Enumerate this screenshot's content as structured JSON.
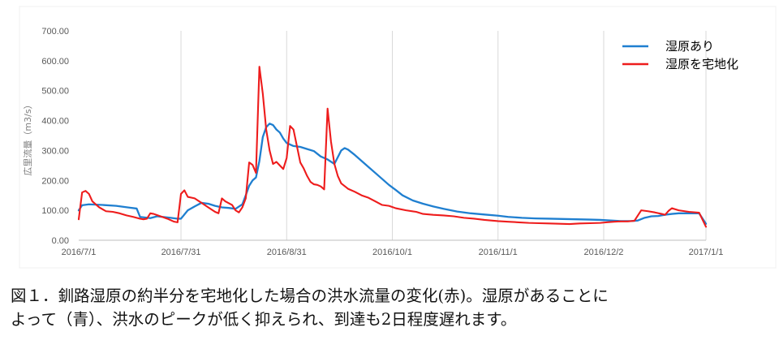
{
  "chart_data": {
    "type": "line",
    "title": "",
    "ylabel": "広里流量（m3/s）",
    "xlabel": "",
    "ylim": [
      0,
      700
    ],
    "y_ticks": [
      "0.00",
      "100.00",
      "200.00",
      "300.00",
      "400.00",
      "500.00",
      "600.00",
      "700.00"
    ],
    "x_range": [
      "2016-07-01",
      "2017-01-01"
    ],
    "x_ticks": [
      {
        "date": "2016-07-01",
        "label": "2016/7/1"
      },
      {
        "date": "2016-07-31",
        "label": "2016/7/31"
      },
      {
        "date": "2016-08-31",
        "label": "2016/8/31"
      },
      {
        "date": "2016-10-01",
        "label": "2016/10/1"
      },
      {
        "date": "2016-11-01",
        "label": "2016/11/1"
      },
      {
        "date": "2016-12-02",
        "label": "2016/12/2"
      },
      {
        "date": "2017-01-01",
        "label": "2017/1/1"
      }
    ],
    "grid": "vertical",
    "legend_position": "top-right",
    "series": [
      {
        "name": "湿原あり",
        "color": "#1f7fd0",
        "points": [
          [
            "2016-07-01",
            100
          ],
          [
            "2016-07-02",
            117
          ],
          [
            "2016-07-04",
            120
          ],
          [
            "2016-07-08",
            118
          ],
          [
            "2016-07-12",
            115
          ],
          [
            "2016-07-16",
            109
          ],
          [
            "2016-07-18",
            106
          ],
          [
            "2016-07-19",
            78
          ],
          [
            "2016-07-22",
            74
          ],
          [
            "2016-07-24",
            80
          ],
          [
            "2016-07-28",
            75
          ],
          [
            "2016-07-30",
            72
          ],
          [
            "2016-07-31",
            72
          ],
          [
            "2016-08-02",
            100
          ],
          [
            "2016-08-04",
            113
          ],
          [
            "2016-08-06",
            125
          ],
          [
            "2016-08-08",
            122
          ],
          [
            "2016-08-10",
            115
          ],
          [
            "2016-08-12",
            110
          ],
          [
            "2016-08-14",
            108
          ],
          [
            "2016-08-16",
            105
          ],
          [
            "2016-08-18",
            120
          ],
          [
            "2016-08-19",
            150
          ],
          [
            "2016-08-20",
            182
          ],
          [
            "2016-08-21",
            200
          ],
          [
            "2016-08-22",
            210
          ],
          [
            "2016-08-23",
            265
          ],
          [
            "2016-08-24",
            345
          ],
          [
            "2016-08-25",
            378
          ],
          [
            "2016-08-26",
            390
          ],
          [
            "2016-08-27",
            385
          ],
          [
            "2016-08-28",
            370
          ],
          [
            "2016-08-29",
            360
          ],
          [
            "2016-08-30",
            340
          ],
          [
            "2016-08-31",
            325
          ],
          [
            "2016-09-02",
            315
          ],
          [
            "2016-09-04",
            312
          ],
          [
            "2016-09-06",
            305
          ],
          [
            "2016-09-08",
            298
          ],
          [
            "2016-09-10",
            280
          ],
          [
            "2016-09-12",
            270
          ],
          [
            "2016-09-14",
            255
          ],
          [
            "2016-09-16",
            300
          ],
          [
            "2016-09-17",
            308
          ],
          [
            "2016-09-18",
            303
          ],
          [
            "2016-09-20",
            285
          ],
          [
            "2016-09-22",
            265
          ],
          [
            "2016-09-24",
            245
          ],
          [
            "2016-09-26",
            225
          ],
          [
            "2016-09-28",
            205
          ],
          [
            "2016-09-30",
            185
          ],
          [
            "2016-10-02",
            168
          ],
          [
            "2016-10-04",
            150
          ],
          [
            "2016-10-07",
            133
          ],
          [
            "2016-10-10",
            122
          ],
          [
            "2016-10-13",
            113
          ],
          [
            "2016-10-16",
            105
          ],
          [
            "2016-10-20",
            96
          ],
          [
            "2016-10-24",
            90
          ],
          [
            "2016-10-28",
            86
          ],
          [
            "2016-11-01",
            82
          ],
          [
            "2016-11-04",
            78
          ],
          [
            "2016-11-08",
            75
          ],
          [
            "2016-11-12",
            73
          ],
          [
            "2016-11-16",
            72
          ],
          [
            "2016-11-20",
            71
          ],
          [
            "2016-11-24",
            70
          ],
          [
            "2016-11-28",
            69
          ],
          [
            "2016-12-01",
            68
          ],
          [
            "2016-12-04",
            66
          ],
          [
            "2016-12-07",
            64
          ],
          [
            "2016-12-10",
            64
          ],
          [
            "2016-12-12",
            66
          ],
          [
            "2016-12-14",
            75
          ],
          [
            "2016-12-16",
            80
          ],
          [
            "2016-12-18",
            81
          ],
          [
            "2016-12-20",
            85
          ],
          [
            "2016-12-22",
            88
          ],
          [
            "2016-12-24",
            90
          ],
          [
            "2016-12-26",
            90
          ],
          [
            "2016-12-30",
            90
          ],
          [
            "2017-01-01",
            55
          ]
        ]
      },
      {
        "name": "湿原を宅地化",
        "color": "#ee1c1c",
        "points": [
          [
            "2016-07-01",
            70
          ],
          [
            "2016-07-02",
            160
          ],
          [
            "2016-07-03",
            165
          ],
          [
            "2016-07-04",
            155
          ],
          [
            "2016-07-05",
            130
          ],
          [
            "2016-07-07",
            110
          ],
          [
            "2016-07-09",
            97
          ],
          [
            "2016-07-11",
            95
          ],
          [
            "2016-07-13",
            90
          ],
          [
            "2016-07-15",
            83
          ],
          [
            "2016-07-17",
            78
          ],
          [
            "2016-07-19",
            72
          ],
          [
            "2016-07-20",
            70
          ],
          [
            "2016-07-21",
            72
          ],
          [
            "2016-07-22",
            90
          ],
          [
            "2016-07-23",
            88
          ],
          [
            "2016-07-25",
            80
          ],
          [
            "2016-07-27",
            72
          ],
          [
            "2016-07-29",
            62
          ],
          [
            "2016-07-30",
            60
          ],
          [
            "2016-07-31",
            155
          ],
          [
            "2016-08-01",
            167
          ],
          [
            "2016-08-02",
            145
          ],
          [
            "2016-08-04",
            140
          ],
          [
            "2016-08-06",
            125
          ],
          [
            "2016-08-08",
            110
          ],
          [
            "2016-08-10",
            95
          ],
          [
            "2016-08-11",
            90
          ],
          [
            "2016-08-12",
            140
          ],
          [
            "2016-08-13",
            130
          ],
          [
            "2016-08-15",
            118
          ],
          [
            "2016-08-16",
            100
          ],
          [
            "2016-08-17",
            93
          ],
          [
            "2016-08-18",
            110
          ],
          [
            "2016-08-19",
            140
          ],
          [
            "2016-08-20",
            260
          ],
          [
            "2016-08-21",
            252
          ],
          [
            "2016-08-22",
            225
          ],
          [
            "2016-08-23",
            580
          ],
          [
            "2016-08-24",
            490
          ],
          [
            "2016-08-25",
            370
          ],
          [
            "2016-08-26",
            300
          ],
          [
            "2016-08-27",
            255
          ],
          [
            "2016-08-28",
            262
          ],
          [
            "2016-08-29",
            250
          ],
          [
            "2016-08-30",
            238
          ],
          [
            "2016-08-31",
            275
          ],
          [
            "2016-09-01",
            382
          ],
          [
            "2016-09-02",
            370
          ],
          [
            "2016-09-03",
            315
          ],
          [
            "2016-09-04",
            260
          ],
          [
            "2016-09-05",
            240
          ],
          [
            "2016-09-06",
            215
          ],
          [
            "2016-09-07",
            195
          ],
          [
            "2016-09-08",
            187
          ],
          [
            "2016-09-09",
            185
          ],
          [
            "2016-09-10",
            180
          ],
          [
            "2016-09-11",
            170
          ],
          [
            "2016-09-12",
            440
          ],
          [
            "2016-09-13",
            330
          ],
          [
            "2016-09-14",
            255
          ],
          [
            "2016-09-15",
            215
          ],
          [
            "2016-09-16",
            190
          ],
          [
            "2016-09-18",
            172
          ],
          [
            "2016-09-20",
            162
          ],
          [
            "2016-09-22",
            150
          ],
          [
            "2016-09-24",
            142
          ],
          [
            "2016-09-26",
            130
          ],
          [
            "2016-09-28",
            118
          ],
          [
            "2016-09-30",
            115
          ],
          [
            "2016-10-02",
            107
          ],
          [
            "2016-10-05",
            100
          ],
          [
            "2016-10-08",
            95
          ],
          [
            "2016-10-10",
            88
          ],
          [
            "2016-10-13",
            85
          ],
          [
            "2016-10-16",
            83
          ],
          [
            "2016-10-19",
            80
          ],
          [
            "2016-10-22",
            75
          ],
          [
            "2016-10-25",
            72
          ],
          [
            "2016-10-28",
            68
          ],
          [
            "2016-11-01",
            64
          ],
          [
            "2016-11-04",
            62
          ],
          [
            "2016-11-07",
            60
          ],
          [
            "2016-11-10",
            58
          ],
          [
            "2016-11-13",
            57
          ],
          [
            "2016-11-16",
            56
          ],
          [
            "2016-11-19",
            55
          ],
          [
            "2016-11-22",
            54
          ],
          [
            "2016-11-25",
            56
          ],
          [
            "2016-11-28",
            57
          ],
          [
            "2016-12-01",
            58
          ],
          [
            "2016-12-03",
            60
          ],
          [
            "2016-12-05",
            62
          ],
          [
            "2016-12-07",
            63
          ],
          [
            "2016-12-09",
            63
          ],
          [
            "2016-12-10",
            64
          ],
          [
            "2016-12-11",
            65
          ],
          [
            "2016-12-13",
            100
          ],
          [
            "2016-12-15",
            97
          ],
          [
            "2016-12-17",
            93
          ],
          [
            "2016-12-19",
            88
          ],
          [
            "2016-12-20",
            85
          ],
          [
            "2016-12-21",
            98
          ],
          [
            "2016-12-22",
            107
          ],
          [
            "2016-12-24",
            100
          ],
          [
            "2016-12-27",
            95
          ],
          [
            "2016-12-30",
            92
          ],
          [
            "2017-01-01",
            45
          ]
        ]
      }
    ]
  },
  "caption": {
    "line1": "図１．釧路湿原の約半分を宅地化した場合の洪水流量の変化(赤)。湿原があることに",
    "line2": "よって（青）、洪水のピークが低く抑えられ、到達も2日程度遅れます。"
  }
}
